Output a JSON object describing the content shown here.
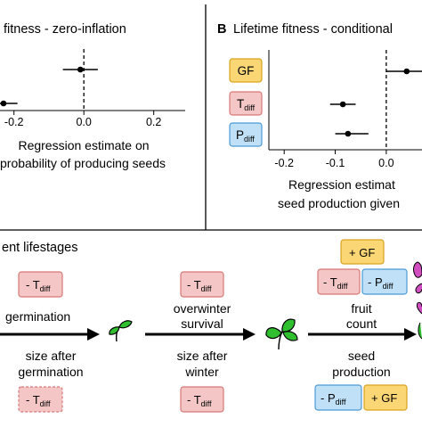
{
  "chart_data": [
    {
      "type": "scatter",
      "panel_letter": "",
      "title": "fitness - zero-inflation",
      "xlabel_line1": "Regression estimate on",
      "xlabel_line2": "probability of producing seeds",
      "x_ticks": [
        -0.2,
        0.0,
        0.2
      ],
      "x_tick_labels": [
        "-0.2",
        "0.0",
        "0.2"
      ],
      "xlim": [
        -0.24,
        0.29
      ],
      "reference_line_x": 0,
      "points": [
        {
          "label": "GF",
          "estimate": -0.01,
          "low": -0.06,
          "high": 0.04
        },
        {
          "label": "T",
          "estimate": -0.23,
          "low": -0.27,
          "high": -0.19
        }
      ]
    },
    {
      "type": "scatter",
      "panel_letter": "B",
      "title": "Lifetime fitness - conditional",
      "xlabel_line1": "Regression estimat",
      "xlabel_line2": "seed production given",
      "x_ticks": [
        -0.2,
        -0.1,
        0.0
      ],
      "x_tick_labels": [
        "-0.2",
        "-0.1",
        "0.0"
      ],
      "xlim": [
        -0.23,
        0.07
      ],
      "reference_line_x": 0,
      "points": [
        {
          "label": "GF",
          "estimate": 0.04,
          "low": 0.0,
          "high": 0.09
        },
        {
          "label": "T",
          "estimate": -0.085,
          "low": -0.11,
          "high": -0.06
        },
        {
          "label": "P",
          "estimate": -0.075,
          "low": -0.1,
          "high": -0.035
        }
      ]
    }
  ],
  "labels": {
    "gf": "GF",
    "t": "T",
    "p": "P",
    "sub": "diff"
  },
  "diagram": {
    "title": "ent lifestages",
    "stage1_top": "germination",
    "stage1_bottom_line1": "size after",
    "stage1_bottom_line2": "germination",
    "stage2_top_line1": "overwinter",
    "stage2_top_line2": "survival",
    "stage2_bottom_line1": "size after",
    "stage2_bottom_line2": "winter",
    "stage3_top_line1": "fruit",
    "stage3_top_line2": "count",
    "stage3_bottom_line1": "seed",
    "stage3_bottom_line2": "production",
    "minus_prefix": "- ",
    "plus_prefix": "+ ",
    "colors": {
      "temperature": "#f4c6c6",
      "precipitation": "#bfe0f7",
      "gene_flow": "#fbd675",
      "plant_green": "#2fbf2f",
      "flower": "#d14ec0"
    }
  }
}
